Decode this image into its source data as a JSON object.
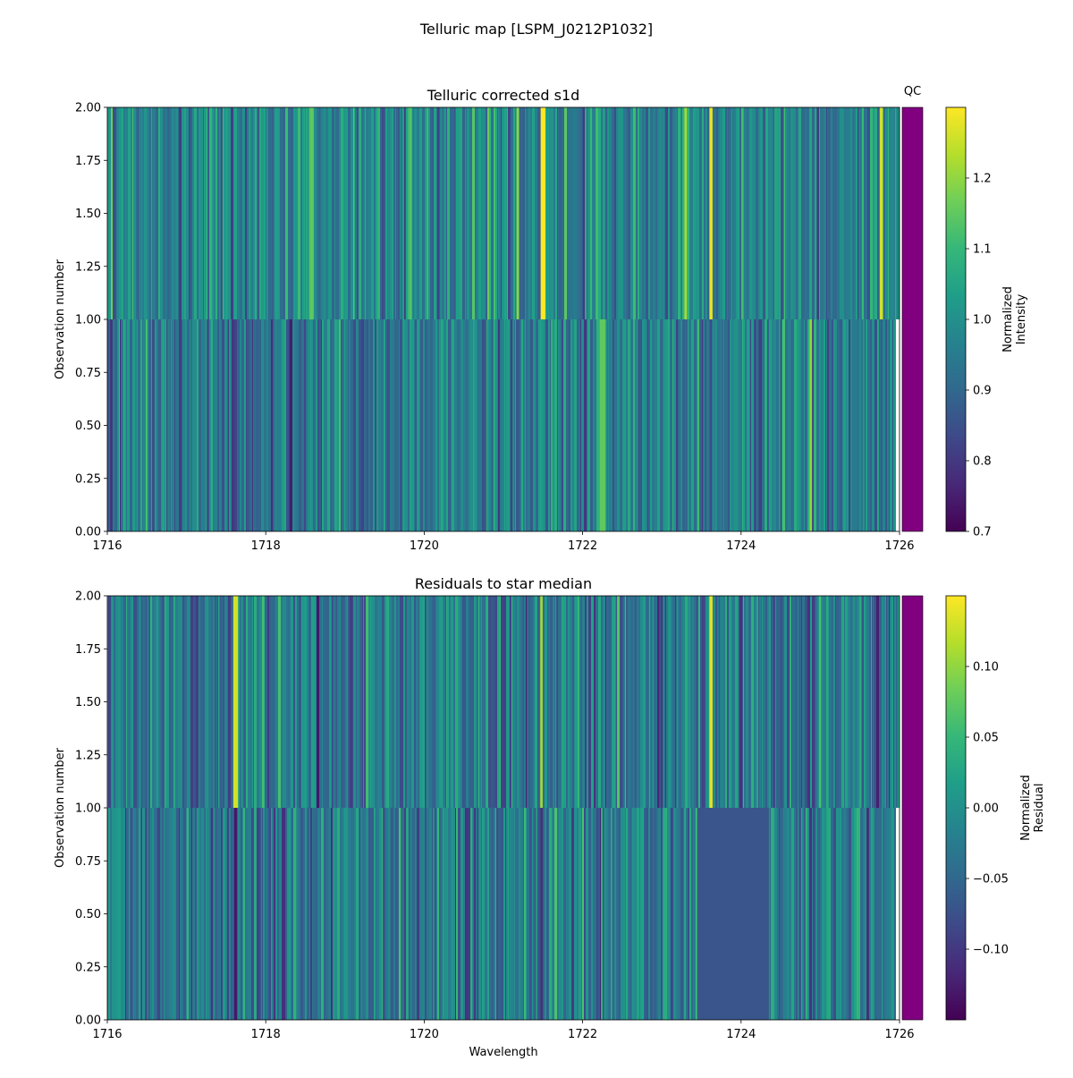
{
  "figure": {
    "suptitle": "Telluric map [LSPM_J0212P1032]",
    "qc_label": "QC",
    "qc_color": "#800080"
  },
  "colormap": [
    "#440154",
    "#482878",
    "#3e4989",
    "#31688e",
    "#26828e",
    "#1f9e89",
    "#35b779",
    "#6ece58",
    "#b5de2b",
    "#fde725"
  ],
  "chart_data": [
    {
      "type": "heatmap",
      "title": "Telluric corrected s1d",
      "xlabel": "",
      "ylabel": "Observation number",
      "xlim": [
        1716,
        1726
      ],
      "ylim": [
        0.0,
        2.0
      ],
      "xticks": [
        "1716",
        "1718",
        "1720",
        "1722",
        "1724",
        "1726"
      ],
      "yticks": [
        "0.00",
        "0.25",
        "0.50",
        "0.75",
        "1.00",
        "1.25",
        "1.50",
        "1.75",
        "2.00"
      ],
      "rows": [
        {
          "y_range": [
            0.0,
            1.0
          ],
          "x_range": [
            1716.0,
            1725.95
          ]
        },
        {
          "y_range": [
            1.0,
            2.0
          ],
          "x_range": [
            1716.0,
            1726.0
          ]
        }
      ],
      "value_range": [
        0.7,
        1.3
      ],
      "colorbar": {
        "label_line1": "Normalized",
        "label_line2": "Intensity",
        "ticks": [
          "0.7",
          "0.8",
          "0.9",
          "1.0",
          "1.1",
          "1.2"
        ],
        "tick_values": [
          0.7,
          0.8,
          0.9,
          1.0,
          1.1,
          1.2
        ]
      },
      "features": [
        {
          "x": 1721.5,
          "obs": [
            1
          ],
          "value": 1.3,
          "width": 0.06
        },
        {
          "x": 1723.62,
          "obs": [
            1
          ],
          "value": 1.28,
          "width": 0.04
        },
        {
          "x": 1725.77,
          "obs": [
            1
          ],
          "value": 1.26,
          "width": 0.04
        },
        {
          "x": 1723.3,
          "obs": [
            1
          ],
          "value": 1.22,
          "width": 0.03
        },
        {
          "x": 1721.18,
          "obs": [
            1
          ],
          "value": 1.2,
          "width": 0.03
        },
        {
          "x": 1718.58,
          "obs": [
            1
          ],
          "value": 1.15,
          "width": 0.05
        },
        {
          "x": 1724.88,
          "obs": [
            0
          ],
          "value": 1.2,
          "width": 0.03
        },
        {
          "x": 1722.25,
          "obs": [
            0
          ],
          "value": 1.15,
          "width": 0.08
        },
        {
          "x": 1716.92,
          "obs": [
            0,
            1
          ],
          "value": 0.8,
          "width": 0.03
        },
        {
          "x": 1717.62,
          "obs": [
            0
          ],
          "value": 0.82,
          "width": 0.04
        },
        {
          "x": 1720.18,
          "obs": [
            1
          ],
          "value": 0.82,
          "width": 0.03
        },
        {
          "x": 1721.1,
          "obs": [
            0
          ],
          "value": 0.82,
          "width": 0.03
        },
        {
          "x": 1723.62,
          "obs": [
            0
          ],
          "value": 0.84,
          "width": 0.03
        },
        {
          "x": 1724.97,
          "obs": [
            1
          ],
          "value": 0.8,
          "width": 0.03
        }
      ]
    },
    {
      "type": "heatmap",
      "title": "Residuals to star median",
      "xlabel": "Wavelength",
      "ylabel": "Observation number",
      "xlim": [
        1716,
        1726
      ],
      "ylim": [
        0.0,
        2.0
      ],
      "xticks": [
        "1716",
        "1718",
        "1720",
        "1722",
        "1724",
        "1726"
      ],
      "yticks": [
        "0.00",
        "0.25",
        "0.50",
        "0.75",
        "1.00",
        "1.25",
        "1.50",
        "1.75",
        "2.00"
      ],
      "rows": [
        {
          "y_range": [
            0.0,
            1.0
          ],
          "x_range": [
            1716.0,
            1725.95
          ]
        },
        {
          "y_range": [
            1.0,
            2.0
          ],
          "x_range": [
            1716.0,
            1726.0
          ]
        }
      ],
      "value_range": [
        -0.15,
        0.15
      ],
      "colorbar": {
        "label_line1": "Normalized",
        "label_line2": "Residual",
        "ticks": [
          "−0.10",
          "−0.05",
          "0.00",
          "0.05",
          "0.10"
        ],
        "tick_values": [
          -0.1,
          -0.05,
          0.0,
          0.05,
          0.1
        ]
      },
      "features": [
        {
          "x": 1717.62,
          "obs": [
            1
          ],
          "value": 0.13,
          "width": 0.06
        },
        {
          "x": 1723.62,
          "obs": [
            1
          ],
          "value": 0.14,
          "width": 0.04
        },
        {
          "x": 1721.48,
          "obs": [
            1
          ],
          "value": 0.11,
          "width": 0.03
        },
        {
          "x": 1717.62,
          "obs": [
            0
          ],
          "value": -0.13,
          "width": 0.04
        },
        {
          "x": 1723.62,
          "obs": [
            0
          ],
          "value": -0.14,
          "width": 0.03
        },
        {
          "x": 1721.48,
          "obs": [
            0
          ],
          "value": -0.11,
          "width": 0.03
        },
        {
          "x": 1723.9,
          "obs": [
            0
          ],
          "value": -0.07,
          "width": 0.9
        }
      ]
    }
  ]
}
